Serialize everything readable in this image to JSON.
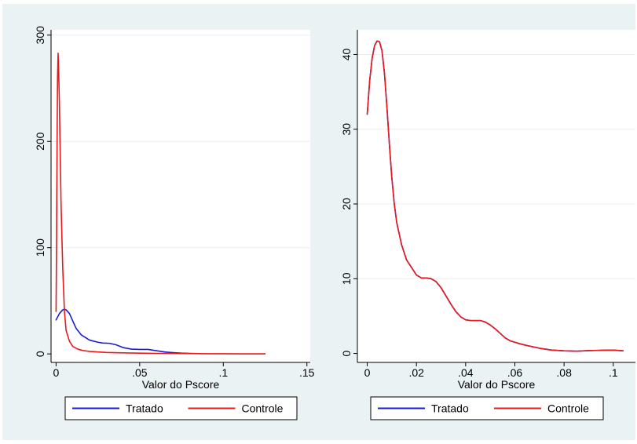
{
  "colors": {
    "figure_background": "#eaf2f3",
    "plot_background": "#ffffff",
    "gridline": "#e7eff0",
    "tratado": "#1a1adb",
    "controle": "#e8191b"
  },
  "chart_data": [
    {
      "type": "line",
      "xlabel": "Valor do Pscore",
      "ylabel": "",
      "xlim": [
        -0.003,
        0.152
      ],
      "ylim": [
        -8,
        305
      ],
      "xticks": [
        0,
        0.05,
        0.1,
        0.15
      ],
      "xtick_labels": [
        "0",
        ".05",
        ".1",
        ".15"
      ],
      "yticks": [
        0,
        100,
        200,
        300
      ],
      "ytick_labels": [
        "0",
        "100",
        "200",
        "300"
      ],
      "grid": true,
      "legend": {
        "position": "bottom",
        "entries": [
          "Tratado",
          "Controle"
        ]
      },
      "series": [
        {
          "name": "Tratado",
          "color": "#1a1adb",
          "x": [
            0.0,
            0.002,
            0.004,
            0.005,
            0.006,
            0.008,
            0.01,
            0.012,
            0.015,
            0.02,
            0.025,
            0.028,
            0.032,
            0.036,
            0.04,
            0.045,
            0.05,
            0.055,
            0.06,
            0.065,
            0.07,
            0.075,
            0.08,
            0.085
          ],
          "y": [
            32,
            38,
            41.5,
            42,
            41.5,
            38,
            31,
            24,
            18,
            13,
            11,
            10.2,
            10,
            8.5,
            6,
            4.5,
            4.2,
            4.2,
            3,
            1.8,
            1.2,
            0.7,
            0.5,
            0.3
          ]
        },
        {
          "name": "Controle",
          "color": "#e8191b",
          "x": [
            0.0,
            0.0003,
            0.0006,
            0.0009,
            0.0012,
            0.0015,
            0.002,
            0.0025,
            0.003,
            0.004,
            0.005,
            0.006,
            0.008,
            0.01,
            0.013,
            0.016,
            0.02,
            0.025,
            0.03,
            0.04,
            0.05,
            0.06,
            0.07,
            0.08,
            0.09,
            0.1,
            0.11,
            0.125
          ],
          "y": [
            40,
            110,
            200,
            260,
            283,
            270,
            235,
            185,
            140,
            80,
            40,
            22,
            12,
            7,
            4.5,
            3.2,
            2.4,
            1.8,
            1.4,
            1.0,
            0.7,
            0.5,
            0.4,
            0.3,
            0.2,
            0.2,
            0.1,
            0.1
          ]
        }
      ]
    },
    {
      "type": "line",
      "xlabel": "Valor do Pscore",
      "ylabel": "",
      "xlim": [
        -0.004,
        0.109
      ],
      "ylim": [
        -1.2,
        43.3
      ],
      "xticks": [
        0,
        0.02,
        0.04,
        0.06,
        0.08,
        0.1
      ],
      "xtick_labels": [
        "0",
        ".02",
        ".04",
        ".06",
        ".08",
        ".1"
      ],
      "yticks": [
        0,
        10,
        20,
        30,
        40
      ],
      "ytick_labels": [
        "0",
        "10",
        "20",
        "30",
        "40"
      ],
      "grid": true,
      "legend": {
        "position": "bottom",
        "entries": [
          "Tratado",
          "Controle"
        ]
      },
      "series": [
        {
          "name": "Tratado",
          "color": "#1a1adb",
          "x": [
            0.0,
            0.001,
            0.002,
            0.003,
            0.004,
            0.005,
            0.006,
            0.007,
            0.008,
            0.009,
            0.01,
            0.011,
            0.012,
            0.014,
            0.016,
            0.018,
            0.02,
            0.022,
            0.024,
            0.026,
            0.028,
            0.03,
            0.032,
            0.034,
            0.036,
            0.038,
            0.04,
            0.042,
            0.044,
            0.046,
            0.048,
            0.05,
            0.052,
            0.054,
            0.056,
            0.058,
            0.06,
            0.062,
            0.065,
            0.07,
            0.075,
            0.08,
            0.085,
            0.09,
            0.095,
            0.1,
            0.104
          ],
          "y": [
            32,
            36.5,
            39.5,
            41.2,
            41.8,
            41.7,
            40.5,
            37.5,
            33,
            28,
            23.5,
            20,
            17.5,
            14.5,
            12.5,
            11.5,
            10.5,
            10.1,
            10.1,
            10.0,
            9.6,
            8.8,
            7.7,
            6.6,
            5.6,
            4.9,
            4.5,
            4.4,
            4.4,
            4.4,
            4.2,
            3.8,
            3.3,
            2.7,
            2.1,
            1.7,
            1.5,
            1.3,
            1.05,
            0.7,
            0.45,
            0.35,
            0.3,
            0.38,
            0.42,
            0.45,
            0.35
          ]
        },
        {
          "name": "Controle",
          "color": "#e8191b",
          "x": [
            0.0,
            0.001,
            0.002,
            0.003,
            0.004,
            0.005,
            0.006,
            0.007,
            0.008,
            0.009,
            0.01,
            0.011,
            0.012,
            0.014,
            0.016,
            0.018,
            0.02,
            0.022,
            0.024,
            0.026,
            0.028,
            0.03,
            0.032,
            0.034,
            0.036,
            0.038,
            0.04,
            0.042,
            0.044,
            0.046,
            0.048,
            0.05,
            0.052,
            0.054,
            0.056,
            0.058,
            0.06,
            0.062,
            0.065,
            0.07,
            0.075,
            0.08,
            0.085,
            0.09,
            0.095,
            0.1,
            0.104
          ],
          "y": [
            32,
            36.5,
            39.5,
            41.2,
            41.8,
            41.7,
            40.5,
            37.5,
            33,
            28,
            23.5,
            20,
            17.5,
            14.5,
            12.5,
            11.5,
            10.5,
            10.1,
            10.1,
            10.0,
            9.6,
            8.8,
            7.7,
            6.6,
            5.6,
            4.9,
            4.5,
            4.4,
            4.4,
            4.4,
            4.2,
            3.8,
            3.3,
            2.7,
            2.1,
            1.7,
            1.5,
            1.3,
            1.05,
            0.7,
            0.45,
            0.35,
            0.3,
            0.38,
            0.42,
            0.45,
            0.35
          ]
        }
      ]
    }
  ]
}
